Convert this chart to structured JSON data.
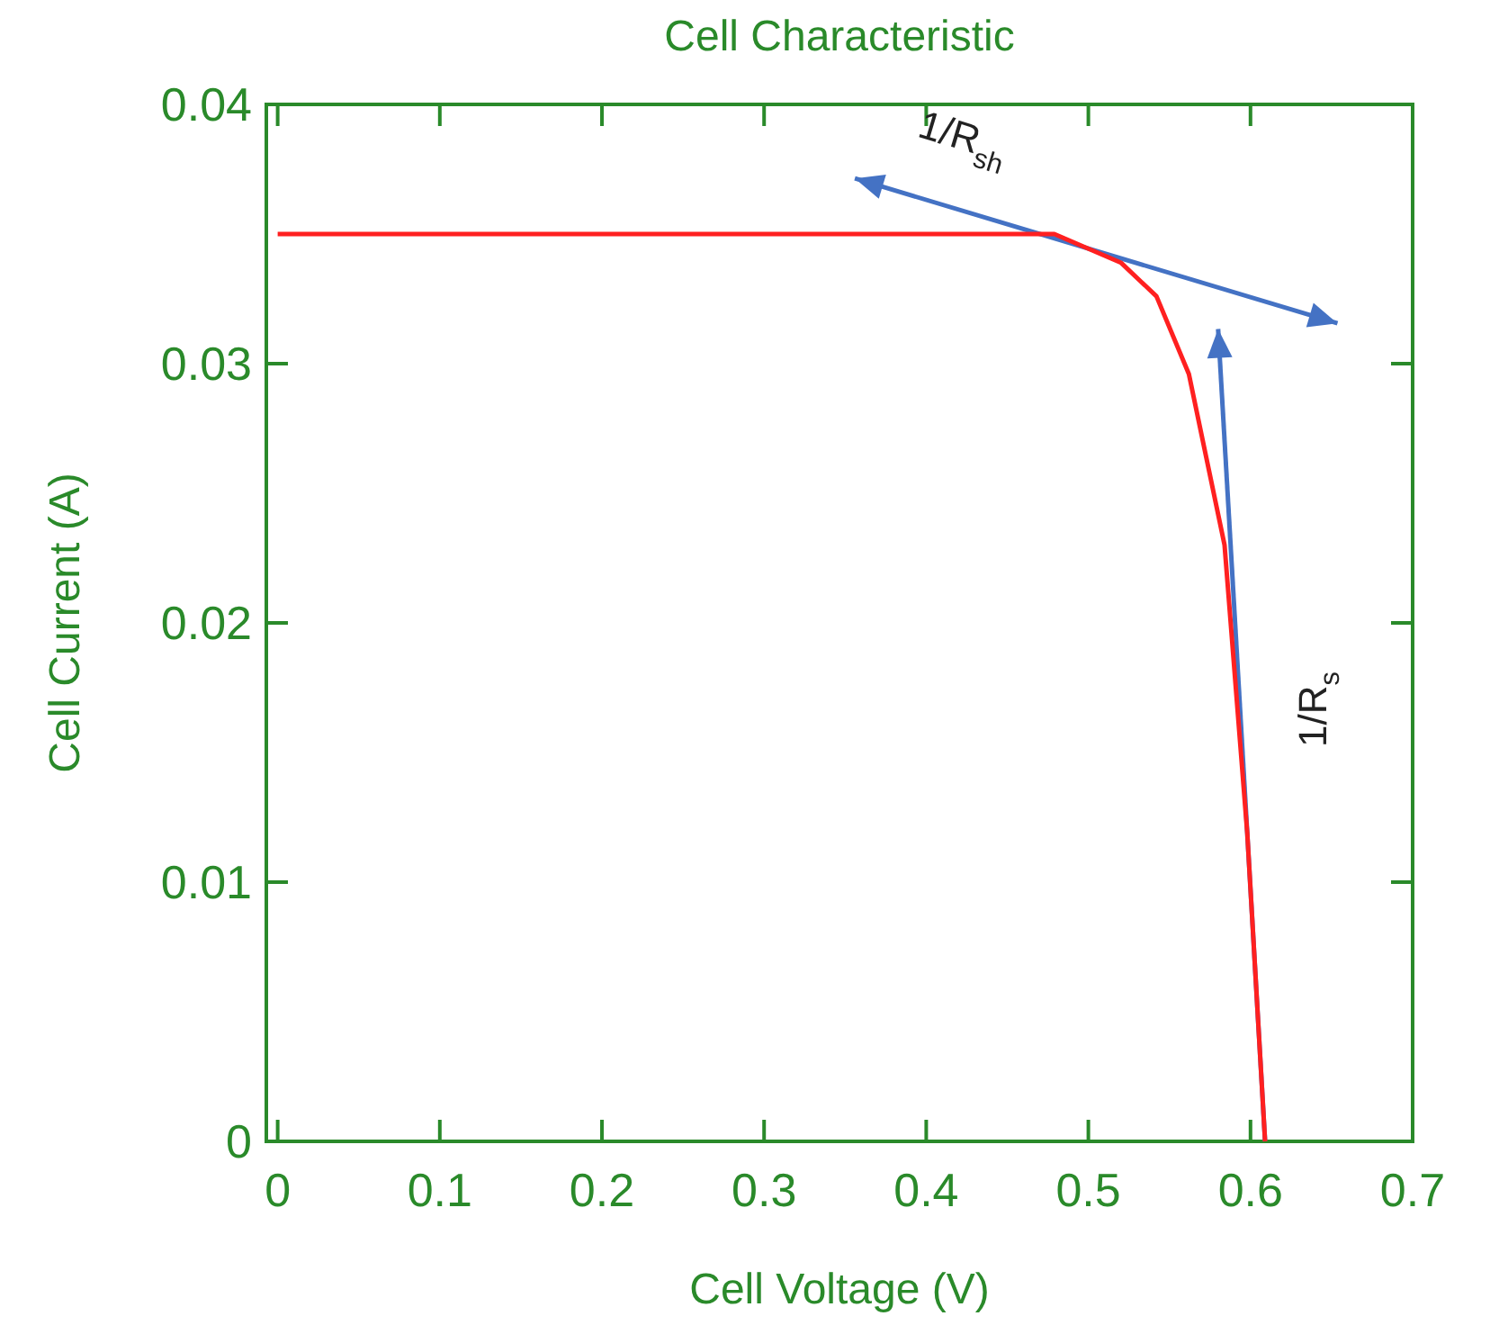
{
  "chart_data": {
    "type": "line",
    "title": "Cell Characteristic",
    "xlabel": "Cell Voltage (V)",
    "ylabel": "Cell Current (A)",
    "xlim": [
      -0.007,
      0.7
    ],
    "xticks": [
      0,
      0.1,
      0.2,
      0.3,
      0.4,
      0.5,
      0.6,
      0.7
    ],
    "ylim": [
      0,
      0.04
    ],
    "yticks": [
      0,
      0.01,
      0.02,
      0.03,
      0.04
    ],
    "grid": false,
    "series": [
      {
        "color": "#ff2020",
        "x": [
          0,
          0.479,
          0.52,
          0.542,
          0.562,
          0.584,
          0.598,
          0.609
        ],
        "values": [
          0.035,
          0.035,
          0.0339,
          0.0326,
          0.0296,
          0.023,
          0.0119,
          0
        ]
      }
    ],
    "annotations": [
      "1/R$_{sh}$",
      "1/R$_{s}$"
    ]
  }
}
